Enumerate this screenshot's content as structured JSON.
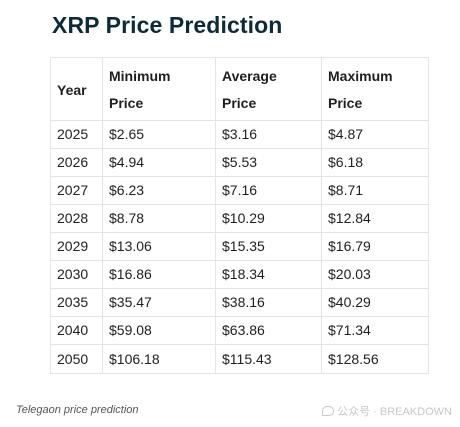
{
  "title": "XRP Price Prediction",
  "table": {
    "headers": {
      "year": "Year",
      "min_line1": "Minimum",
      "min_line2": "Price",
      "avg_line1": "Average",
      "avg_line2": "Price",
      "max_line1": "Maximum",
      "max_line2": "Price"
    },
    "rows": [
      {
        "year": "2025",
        "min": "$2.65",
        "avg": "$3.16",
        "max": "$4.87"
      },
      {
        "year": "2026",
        "min": "$4.94",
        "avg": "$5.53",
        "max": "$6.18"
      },
      {
        "year": "2027",
        "min": "$6.23",
        "avg": "$7.16",
        "max": "$8.71"
      },
      {
        "year": "2028",
        "min": "$8.78",
        "avg": "$10.29",
        "max": "$12.84"
      },
      {
        "year": "2029",
        "min": "$13.06",
        "avg": "$15.35",
        "max": "$16.79"
      },
      {
        "year": "2030",
        "min": "$16.86",
        "avg": "$18.34",
        "max": "$20.03"
      },
      {
        "year": "2035",
        "min": "$35.47",
        "avg": "$38.16",
        "max": "$40.29"
      },
      {
        "year": "2040",
        "min": "$59.08",
        "avg": "$63.86",
        "max": "$71.34"
      },
      {
        "year": "2050",
        "min": "$106.18",
        "avg": "$115.43",
        "max": "$128.56"
      }
    ]
  },
  "caption": "Telegaon price prediction",
  "watermark": {
    "icon": "chat-bubble-icon",
    "text": "公众号 · BREAKDOWN"
  },
  "colors": {
    "title": "#0e2a3a",
    "border": "#e4e4e4",
    "caption": "#555555",
    "watermark": "#c8c8c8"
  }
}
